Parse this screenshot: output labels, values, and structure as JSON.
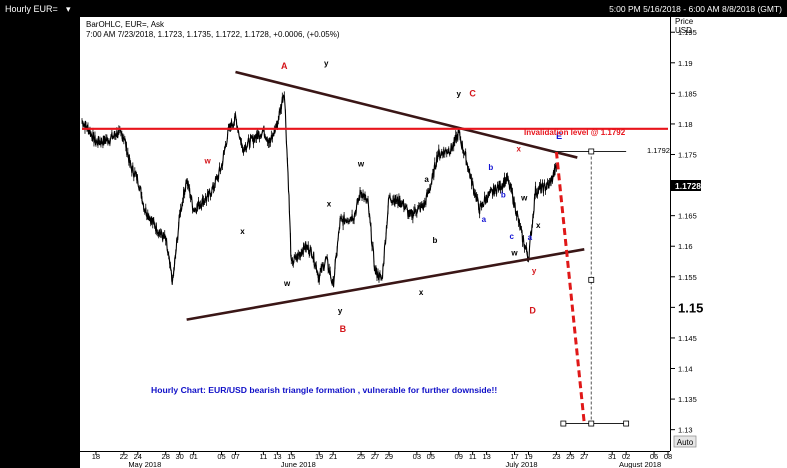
{
  "window": {
    "title": "Hourly EUR=",
    "menu_marker": "▾",
    "range": "5:00 PM 5/16/2018 - 6:00 AM 8/8/2018 (GMT)"
  },
  "legend": {
    "line1": "BarOHLC, EUR=, Ask",
    "line2": "7:00 AM 7/23/2018, 1.1723, 1.1735, 1.1722, 1.1728, +0.0006, (+0.05%)"
  },
  "axis": {
    "price_label_1": "Price",
    "price_label_2": "USD",
    "auto_button": "Auto"
  },
  "colors": {
    "price": "#000000",
    "triangle": "#3a1616",
    "invalidation": "#e8141c",
    "projection": "#e01818",
    "wave_labels_red": "#d4141a",
    "wave_labels_blue": "#1414d4",
    "annotation_blue": "#1010c8"
  },
  "chart_data": {
    "type": "line",
    "series_type": "ohlc",
    "title": "Hourly EUR=",
    "xlabel": "",
    "ylabel": "Price USD",
    "ylim": [
      1.127,
      1.197
    ],
    "xlim": [
      "2018-05-16",
      "2018-08-08"
    ],
    "y_ticks": [
      "1.195",
      "1.19",
      "1.185",
      "1.18",
      "1.175",
      "1.17",
      "1.165",
      "1.16",
      "1.155",
      "1.15",
      "1.145",
      "1.14",
      "1.135",
      "1.13"
    ],
    "major_y_tick": "1.15",
    "x_ticks": [
      {
        "date": "2018-05-18",
        "label": "18"
      },
      {
        "date": "2018-05-22",
        "label": "22"
      },
      {
        "date": "2018-05-24",
        "label": "24"
      },
      {
        "date": "2018-05-28",
        "label": "28"
      },
      {
        "date": "2018-05-30",
        "label": "30"
      },
      {
        "date": "2018-06-01",
        "label": "01"
      },
      {
        "date": "2018-06-05",
        "label": "05"
      },
      {
        "date": "2018-06-07",
        "label": "07"
      },
      {
        "date": "2018-06-11",
        "label": "11"
      },
      {
        "date": "2018-06-13",
        "label": "13"
      },
      {
        "date": "2018-06-15",
        "label": "15"
      },
      {
        "date": "2018-06-19",
        "label": "19"
      },
      {
        "date": "2018-06-21",
        "label": "21"
      },
      {
        "date": "2018-06-25",
        "label": "25"
      },
      {
        "date": "2018-06-27",
        "label": "27"
      },
      {
        "date": "2018-06-29",
        "label": "29"
      },
      {
        "date": "2018-07-03",
        "label": "03"
      },
      {
        "date": "2018-07-05",
        "label": "05"
      },
      {
        "date": "2018-07-09",
        "label": "09"
      },
      {
        "date": "2018-07-11",
        "label": "11"
      },
      {
        "date": "2018-07-13",
        "label": "13"
      },
      {
        "date": "2018-07-17",
        "label": "17"
      },
      {
        "date": "2018-07-19",
        "label": "19"
      },
      {
        "date": "2018-07-23",
        "label": "23"
      },
      {
        "date": "2018-07-25",
        "label": "25"
      },
      {
        "date": "2018-07-27",
        "label": "27"
      },
      {
        "date": "2018-07-31",
        "label": "31"
      },
      {
        "date": "2018-08-02",
        "label": "02"
      },
      {
        "date": "2018-08-06",
        "label": "06"
      },
      {
        "date": "2018-08-08",
        "label": "08"
      }
    ],
    "month_labels": [
      {
        "date": "2018-05-25",
        "label": "May 2018"
      },
      {
        "date": "2018-06-16",
        "label": "June 2018"
      },
      {
        "date": "2018-07-18",
        "label": "July 2018"
      },
      {
        "date": "2018-08-04",
        "label": "August 2018"
      }
    ],
    "price_series": [
      [
        "2018-05-16",
        1.1805
      ],
      [
        "2018-05-17",
        1.179
      ],
      [
        "2018-05-18",
        1.177
      ],
      [
        "2018-05-20",
        1.1775
      ],
      [
        "2018-05-21",
        1.1785
      ],
      [
        "2018-05-22",
        1.178
      ],
      [
        "2018-05-23",
        1.173
      ],
      [
        "2018-05-24",
        1.171
      ],
      [
        "2018-05-25",
        1.166
      ],
      [
        "2018-05-27",
        1.1625
      ],
      [
        "2018-05-28",
        1.161
      ],
      [
        "2018-05-29",
        1.154
      ],
      [
        "2018-05-30",
        1.165
      ],
      [
        "2018-05-31",
        1.171
      ],
      [
        "2018-06-01",
        1.166
      ],
      [
        "2018-06-03",
        1.168
      ],
      [
        "2018-06-04",
        1.17
      ],
      [
        "2018-06-05",
        1.173
      ],
      [
        "2018-06-06",
        1.179
      ],
      [
        "2018-06-07",
        1.181
      ],
      [
        "2018-06-08",
        1.176
      ],
      [
        "2018-06-10",
        1.178
      ],
      [
        "2018-06-11",
        1.179
      ],
      [
        "2018-06-12",
        1.177
      ],
      [
        "2018-06-13",
        1.18
      ],
      [
        "2018-06-14",
        1.1855
      ],
      [
        "2018-06-14.6",
        1.17
      ],
      [
        "2018-06-15",
        1.157
      ],
      [
        "2018-06-17",
        1.16
      ],
      [
        "2018-06-18",
        1.159
      ],
      [
        "2018-06-19",
        1.155
      ],
      [
        "2018-06-20",
        1.158
      ],
      [
        "2018-06-21",
        1.1535
      ],
      [
        "2018-06-22",
        1.164
      ],
      [
        "2018-06-24",
        1.165
      ],
      [
        "2018-06-25",
        1.169
      ],
      [
        "2018-06-26",
        1.167
      ],
      [
        "2018-06-27",
        1.156
      ],
      [
        "2018-06-28",
        1.1545
      ],
      [
        "2018-06-29",
        1.168
      ],
      [
        "2018-07-01",
        1.167
      ],
      [
        "2018-07-02",
        1.165
      ],
      [
        "2018-07-03",
        1.166
      ],
      [
        "2018-07-04",
        1.1665
      ],
      [
        "2018-07-05",
        1.17
      ],
      [
        "2018-07-06",
        1.175
      ],
      [
        "2018-07-08",
        1.176
      ],
      [
        "2018-07-09",
        1.1785
      ],
      [
        "2018-07-10",
        1.1745
      ],
      [
        "2018-07-11",
        1.17
      ],
      [
        "2018-07-12",
        1.166
      ],
      [
        "2018-07-13",
        1.168
      ],
      [
        "2018-07-15",
        1.17
      ],
      [
        "2018-07-16",
        1.171
      ],
      [
        "2018-07-17",
        1.167
      ],
      [
        "2018-07-18",
        1.162
      ],
      [
        "2018-07-19",
        1.158
      ],
      [
        "2018-07-20",
        1.169
      ],
      [
        "2018-07-22",
        1.17
      ],
      [
        "2018-07-23",
        1.1728
      ]
    ],
    "lines": [
      {
        "name": "triangle-upper",
        "from": [
          "2018-06-07",
          1.1885
        ],
        "to": [
          "2018-07-26",
          1.1745
        ]
      },
      {
        "name": "triangle-lower",
        "from": [
          "2018-05-31",
          1.148
        ],
        "to": [
          "2018-07-27",
          1.1595
        ]
      },
      {
        "name": "invalidation-level",
        "from": [
          "2018-05-16",
          1.1792
        ],
        "to": [
          "2018-08-08",
          1.1792
        ],
        "value": 1.1792
      }
    ],
    "projection": {
      "from": [
        "2018-07-23",
        1.1755
      ],
      "to": [
        "2018-07-27",
        1.131
      ]
    },
    "measure": {
      "date": "2018-07-28",
      "top": 1.1755,
      "bottom": 1.131,
      "mid": 1.1545
    },
    "invalidation_value_label": "1.1792",
    "last_price_label": "1.1728",
    "annotations": {
      "invalidation": "Invalidation level @ 1.1792",
      "caption": "Hourly Chart: EUR/USD  bearish triangle formation , vulnerable for further downside!!"
    },
    "wave_labels": [
      {
        "text": "A",
        "date": "2018-06-14",
        "price": 1.189,
        "color": "red"
      },
      {
        "text": "y",
        "date": "2018-06-20",
        "price": 1.1895,
        "color": "black"
      },
      {
        "text": "w",
        "date": "2018-06-03",
        "price": 1.1735,
        "color": "red"
      },
      {
        "text": "x",
        "date": "2018-06-08",
        "price": 1.162,
        "color": "black"
      },
      {
        "text": "w",
        "date": "2018-06-14.4",
        "price": 1.1535,
        "color": "black"
      },
      {
        "text": "x",
        "date": "2018-06-20.4",
        "price": 1.1665,
        "color": "black"
      },
      {
        "text": "y",
        "date": "2018-06-22",
        "price": 1.149,
        "color": "black"
      },
      {
        "text": "B",
        "date": "2018-06-22.4",
        "price": 1.146,
        "color": "red"
      },
      {
        "text": "w",
        "date": "2018-06-25",
        "price": 1.173,
        "color": "black"
      },
      {
        "text": "x",
        "date": "2018-07-03.6",
        "price": 1.152,
        "color": "black"
      },
      {
        "text": "a",
        "date": "2018-07-04.4",
        "price": 1.1705,
        "color": "black"
      },
      {
        "text": "b",
        "date": "2018-07-05.6",
        "price": 1.1605,
        "color": "black"
      },
      {
        "text": "y",
        "date": "2018-07-09",
        "price": 1.1845,
        "color": "black"
      },
      {
        "text": "C",
        "date": "2018-07-11",
        "price": 1.1845,
        "color": "red"
      },
      {
        "text": "a",
        "date": "2018-07-12.6",
        "price": 1.164,
        "color": "blue"
      },
      {
        "text": "b",
        "date": "2018-07-13.6",
        "price": 1.1725,
        "color": "blue"
      },
      {
        "text": "b",
        "date": "2018-07-15.4",
        "price": 1.168,
        "color": "blue"
      },
      {
        "text": "c",
        "date": "2018-07-16.6",
        "price": 1.1612,
        "color": "blue"
      },
      {
        "text": "x",
        "date": "2018-07-17.6",
        "price": 1.1755,
        "color": "red"
      },
      {
        "text": "w",
        "date": "2018-07-18.4",
        "price": 1.1675,
        "color": "black"
      },
      {
        "text": "w",
        "date": "2018-07-17",
        "price": 1.1585,
        "color": "black"
      },
      {
        "text": "a",
        "date": "2018-07-19.2",
        "price": 1.161,
        "color": "blue"
      },
      {
        "text": "x",
        "date": "2018-07-20.4",
        "price": 1.163,
        "color": "black"
      },
      {
        "text": "y",
        "date": "2018-07-19.8",
        "price": 1.1555,
        "color": "red"
      },
      {
        "text": "D",
        "date": "2018-07-19.6",
        "price": 1.149,
        "color": "red"
      },
      {
        "text": "E",
        "date": "2018-07-23.4",
        "price": 1.1775,
        "color": "blue"
      }
    ]
  }
}
